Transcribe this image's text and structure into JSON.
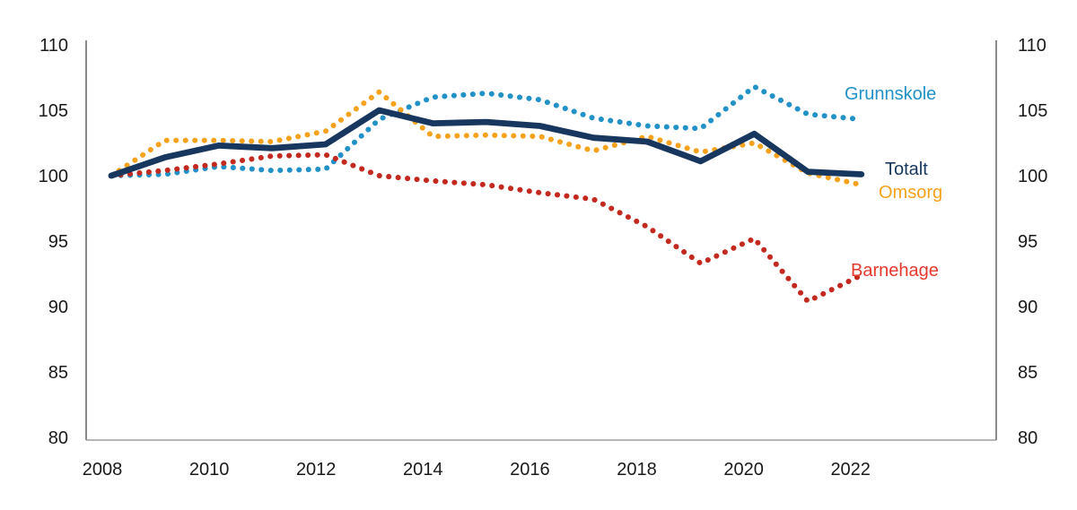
{
  "figure": {
    "background": "#ffffff",
    "axis_side_color": "#4a4a4a",
    "axis_bottom_color": "#8a8a8a",
    "tick_label_color": "#1a1a1a"
  },
  "chart_data": {
    "type": "line",
    "title": "",
    "xlabel": "",
    "ylabel": "",
    "x": [
      2008,
      2009,
      2010,
      2011,
      2012,
      2013,
      2014,
      2015,
      2016,
      2017,
      2018,
      2019,
      2020,
      2021,
      2022
    ],
    "xticks": [
      2008,
      2010,
      2012,
      2014,
      2016,
      2018,
      2020,
      2022
    ],
    "yticks": [
      80,
      85,
      90,
      95,
      100,
      105,
      110
    ],
    "ylim": [
      80,
      110
    ],
    "grid": false,
    "y_axis_sides": [
      "left",
      "right"
    ],
    "legend_position": "inline-right-of-lines",
    "series": [
      {
        "name": "Grunnskole",
        "style": "dotted",
        "color": "#2191c8",
        "values": [
          100,
          100.1,
          100.7,
          100.4,
          100.5,
          104.3,
          106.0,
          106.3,
          105.8,
          104.4,
          103.8,
          103.6,
          106.8,
          104.7,
          104.3
        ]
      },
      {
        "name": "Totalt",
        "style": "solid",
        "color": "#17375e",
        "values": [
          100,
          101.4,
          102.3,
          102.1,
          102.4,
          105.0,
          104.0,
          104.1,
          103.8,
          102.9,
          102.6,
          101.1,
          103.2,
          100.3,
          100.1
        ]
      },
      {
        "name": "Omsorg",
        "style": "dotted",
        "color": "#f6a21d",
        "values": [
          100,
          102.7,
          102.7,
          102.6,
          103.4,
          106.4,
          103.0,
          103.1,
          103.0,
          101.9,
          103.0,
          101.8,
          102.5,
          100.2,
          99.3
        ]
      },
      {
        "name": "Barnehage",
        "style": "dotted",
        "color": "#c4291f",
        "label_color": "#e6392e",
        "values": [
          100,
          100.4,
          100.9,
          101.5,
          101.6,
          100.0,
          99.6,
          99.3,
          98.7,
          98.2,
          96.1,
          93.3,
          95.2,
          90.4,
          92.4
        ]
      }
    ]
  }
}
